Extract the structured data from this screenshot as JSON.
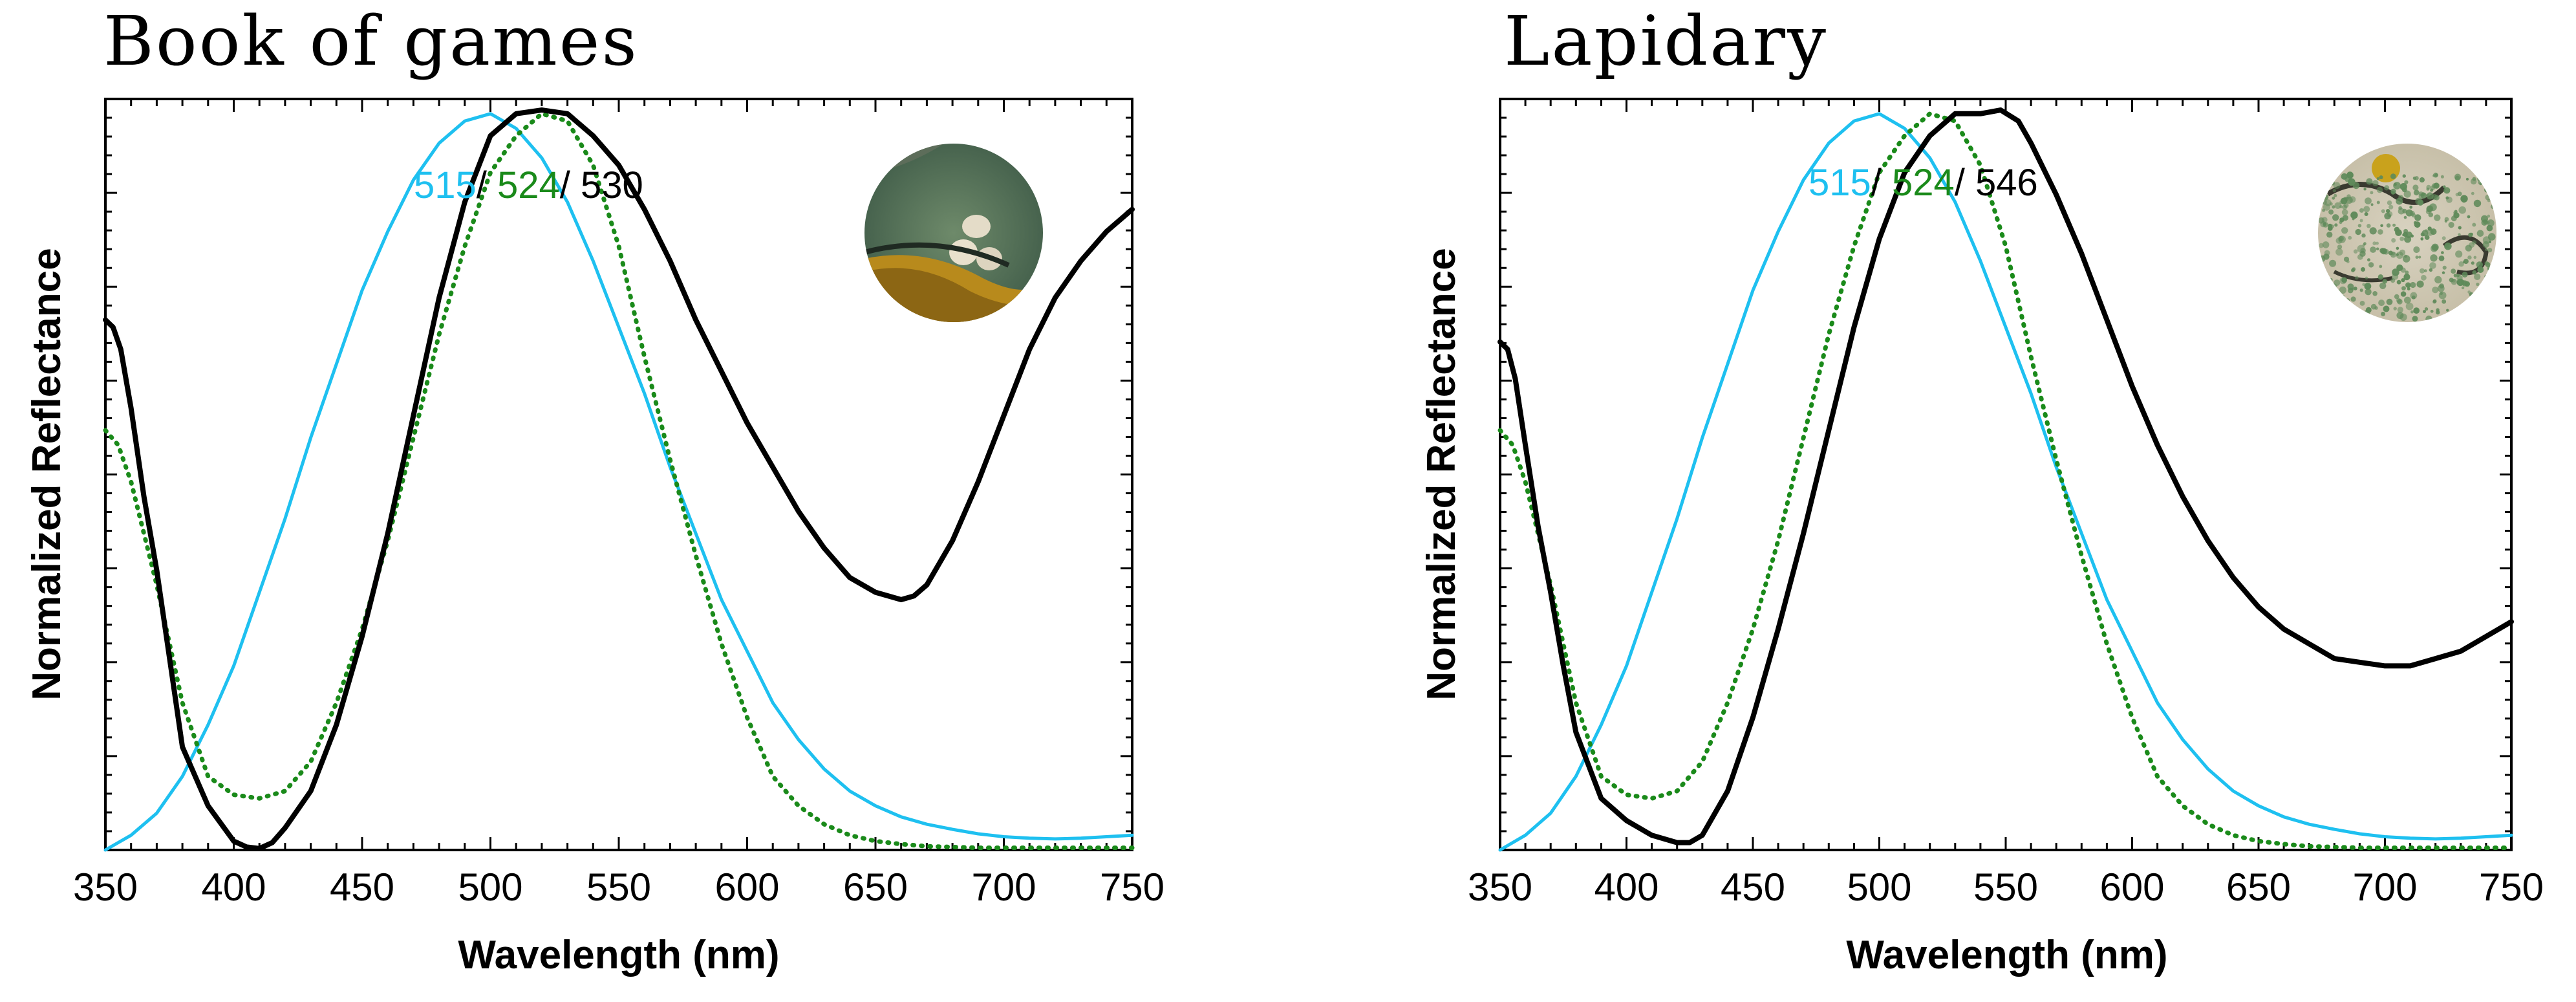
{
  "figure": {
    "colors": {
      "cyan": "#1ec0f0",
      "green": "#1a8a1a",
      "black": "#000000"
    }
  },
  "chart_data": [
    {
      "type": "line",
      "title": "Book of games",
      "xlabel": "Wavelength (nm)",
      "ylabel": "Normalized Reflectance",
      "xlim": [
        350,
        750
      ],
      "ylim": [
        0,
        1.02
      ],
      "xticks": [
        350,
        400,
        450,
        500,
        550,
        600,
        650,
        700,
        750
      ],
      "annotation": {
        "parts": [
          "515",
          "/ ",
          "524",
          "/ ",
          "530"
        ],
        "colors": [
          "cyan",
          "black",
          "green",
          "black",
          "black"
        ]
      },
      "series": [
        {
          "name": "515",
          "color": "cyan",
          "style": "solid",
          "x": [
            350,
            360,
            370,
            380,
            390,
            400,
            410,
            420,
            430,
            440,
            450,
            460,
            470,
            480,
            490,
            500,
            510,
            520,
            530,
            540,
            550,
            560,
            570,
            580,
            590,
            600,
            610,
            620,
            630,
            640,
            650,
            660,
            670,
            680,
            690,
            700,
            710,
            720,
            730,
            740,
            750
          ],
          "y": [
            0.0,
            0.02,
            0.05,
            0.1,
            0.17,
            0.25,
            0.35,
            0.45,
            0.56,
            0.66,
            0.76,
            0.84,
            0.91,
            0.96,
            0.99,
            1.0,
            0.98,
            0.94,
            0.88,
            0.8,
            0.71,
            0.62,
            0.52,
            0.43,
            0.34,
            0.27,
            0.2,
            0.15,
            0.11,
            0.08,
            0.06,
            0.045,
            0.035,
            0.028,
            0.022,
            0.018,
            0.016,
            0.015,
            0.016,
            0.018,
            0.02
          ]
        },
        {
          "name": "524",
          "color": "green",
          "style": "dotted",
          "x": [
            350,
            355,
            360,
            370,
            380,
            390,
            400,
            410,
            420,
            430,
            440,
            450,
            460,
            470,
            480,
            490,
            500,
            510,
            520,
            530,
            540,
            550,
            560,
            570,
            580,
            590,
            600,
            610,
            620,
            630,
            640,
            650,
            660,
            670,
            680,
            690,
            700,
            710,
            720,
            730,
            740,
            750
          ],
          "y": [
            0.57,
            0.55,
            0.5,
            0.36,
            0.2,
            0.1,
            0.075,
            0.07,
            0.08,
            0.12,
            0.2,
            0.3,
            0.42,
            0.56,
            0.7,
            0.82,
            0.92,
            0.97,
            1.0,
            0.99,
            0.93,
            0.82,
            0.67,
            0.53,
            0.4,
            0.28,
            0.18,
            0.1,
            0.06,
            0.035,
            0.02,
            0.012,
            0.008,
            0.005,
            0.004,
            0.003,
            0.003,
            0.003,
            0.003,
            0.003,
            0.003,
            0.003
          ]
        },
        {
          "name": "530",
          "color": "black",
          "style": "solid",
          "x": [
            350,
            353,
            356,
            360,
            365,
            370,
            375,
            380,
            390,
            400,
            405,
            410,
            415,
            420,
            430,
            440,
            450,
            460,
            470,
            480,
            490,
            500,
            510,
            520,
            530,
            540,
            550,
            560,
            570,
            580,
            590,
            600,
            610,
            620,
            630,
            640,
            650,
            660,
            665,
            670,
            680,
            690,
            700,
            710,
            720,
            730,
            740,
            750
          ],
          "y": [
            0.72,
            0.71,
            0.68,
            0.6,
            0.48,
            0.38,
            0.26,
            0.14,
            0.06,
            0.012,
            0.004,
            0.002,
            0.01,
            0.03,
            0.08,
            0.17,
            0.29,
            0.43,
            0.59,
            0.75,
            0.88,
            0.97,
            1.0,
            1.005,
            1.0,
            0.97,
            0.93,
            0.87,
            0.8,
            0.72,
            0.65,
            0.58,
            0.52,
            0.46,
            0.41,
            0.37,
            0.35,
            0.34,
            0.345,
            0.36,
            0.42,
            0.5,
            0.59,
            0.68,
            0.75,
            0.8,
            0.84,
            0.87
          ]
        }
      ]
    },
    {
      "type": "line",
      "title": "Lapidary",
      "xlabel": "Wavelength (nm)",
      "ylabel": "Normalized Reflectance",
      "xlim": [
        350,
        750
      ],
      "ylim": [
        0,
        1.02
      ],
      "xticks": [
        350,
        400,
        450,
        500,
        550,
        600,
        650,
        700,
        750
      ],
      "annotation": {
        "parts": [
          "515",
          "/ ",
          "524",
          "/ ",
          "546"
        ],
        "colors": [
          "cyan",
          "black",
          "green",
          "black",
          "black"
        ]
      },
      "series": [
        {
          "name": "515",
          "color": "cyan",
          "style": "solid",
          "x": [
            350,
            360,
            370,
            380,
            390,
            400,
            410,
            420,
            430,
            440,
            450,
            460,
            470,
            480,
            490,
            500,
            510,
            520,
            530,
            540,
            550,
            560,
            570,
            580,
            590,
            600,
            610,
            620,
            630,
            640,
            650,
            660,
            670,
            680,
            690,
            700,
            710,
            720,
            730,
            740,
            750
          ],
          "y": [
            0.0,
            0.02,
            0.05,
            0.1,
            0.17,
            0.25,
            0.35,
            0.45,
            0.56,
            0.66,
            0.76,
            0.84,
            0.91,
            0.96,
            0.99,
            1.0,
            0.98,
            0.94,
            0.88,
            0.8,
            0.71,
            0.62,
            0.52,
            0.43,
            0.34,
            0.27,
            0.2,
            0.15,
            0.11,
            0.08,
            0.06,
            0.045,
            0.035,
            0.028,
            0.022,
            0.018,
            0.016,
            0.015,
            0.016,
            0.018,
            0.02
          ]
        },
        {
          "name": "524",
          "color": "green",
          "style": "dotted",
          "x": [
            350,
            355,
            360,
            370,
            380,
            390,
            400,
            410,
            420,
            430,
            440,
            450,
            460,
            470,
            480,
            490,
            500,
            510,
            520,
            530,
            540,
            550,
            560,
            570,
            580,
            590,
            600,
            610,
            620,
            630,
            640,
            650,
            660,
            670,
            680,
            690,
            700,
            710,
            720,
            730,
            740,
            750
          ],
          "y": [
            0.57,
            0.55,
            0.5,
            0.36,
            0.2,
            0.1,
            0.075,
            0.07,
            0.08,
            0.12,
            0.2,
            0.3,
            0.42,
            0.56,
            0.7,
            0.82,
            0.92,
            0.97,
            1.0,
            0.99,
            0.93,
            0.82,
            0.67,
            0.53,
            0.4,
            0.28,
            0.18,
            0.1,
            0.06,
            0.035,
            0.02,
            0.012,
            0.008,
            0.005,
            0.004,
            0.003,
            0.003,
            0.003,
            0.003,
            0.003,
            0.003,
            0.003
          ]
        },
        {
          "name": "546",
          "color": "black",
          "style": "solid",
          "x": [
            350,
            353,
            356,
            360,
            365,
            370,
            375,
            380,
            390,
            400,
            410,
            420,
            425,
            430,
            440,
            450,
            460,
            470,
            480,
            490,
            500,
            510,
            520,
            530,
            540,
            548,
            555,
            560,
            570,
            580,
            590,
            600,
            610,
            620,
            630,
            640,
            650,
            660,
            670,
            680,
            690,
            700,
            710,
            720,
            730,
            740,
            750
          ],
          "y": [
            0.69,
            0.68,
            0.64,
            0.55,
            0.44,
            0.35,
            0.25,
            0.16,
            0.07,
            0.04,
            0.02,
            0.01,
            0.01,
            0.02,
            0.08,
            0.18,
            0.3,
            0.43,
            0.57,
            0.71,
            0.83,
            0.92,
            0.97,
            1.0,
            1.0,
            1.005,
            0.99,
            0.96,
            0.89,
            0.81,
            0.72,
            0.63,
            0.55,
            0.48,
            0.42,
            0.37,
            0.33,
            0.3,
            0.28,
            0.26,
            0.255,
            0.25,
            0.25,
            0.26,
            0.27,
            0.29,
            0.31
          ]
        }
      ]
    }
  ]
}
